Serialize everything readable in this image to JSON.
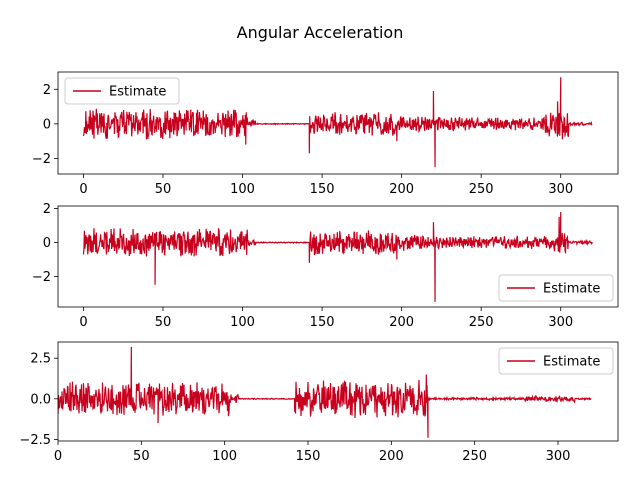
{
  "figure_title": "Angular Acceleration",
  "series_color": "#c8001e",
  "chart_data": [
    {
      "type": "line",
      "title": "",
      "xlabel": "",
      "ylabel": "",
      "xlim": [
        -16,
        336
      ],
      "ylim": [
        -2.9,
        3.0
      ],
      "xticks": [
        0,
        50,
        100,
        150,
        200,
        250,
        300
      ],
      "xtick_labels": [
        "0",
        "50",
        "100",
        "150",
        "200",
        "250",
        "300"
      ],
      "yticks": [
        2,
        0,
        -2
      ],
      "ytick_labels": [
        "2",
        "0",
        "−2"
      ],
      "legend": {
        "label": "Estimate",
        "loc": "upper left"
      },
      "segments": [
        {
          "x": [
            0,
            103
          ],
          "amp": 0.9
        },
        {
          "x": [
            103,
            108
          ],
          "amp": 0.25
        },
        {
          "x": [
            108,
            142
          ],
          "amp": 0.03
        },
        {
          "x": [
            142,
            196
          ],
          "amp": 0.7
        },
        {
          "x": [
            196,
            215
          ],
          "amp": 0.45
        },
        {
          "x": [
            215,
            290
          ],
          "amp": 0.4
        },
        {
          "x": [
            290,
            305
          ],
          "amp": 0.8
        },
        {
          "x": [
            305,
            320
          ],
          "amp": 0.1
        }
      ],
      "spikes": [
        {
          "x": 102,
          "y": -1.2
        },
        {
          "x": 142,
          "y": -1.7
        },
        {
          "x": 197,
          "y": -1.0
        },
        {
          "x": 220,
          "y": 1.9
        },
        {
          "x": 221,
          "y": -2.5
        },
        {
          "x": 298,
          "y": 1.3
        },
        {
          "x": 300,
          "y": 2.7
        },
        {
          "x": 301,
          "y": -0.9
        }
      ]
    },
    {
      "type": "line",
      "title": "",
      "xlabel": "",
      "ylabel": "",
      "xlim": [
        -16,
        336
      ],
      "ylim": [
        -3.8,
        2.15
      ],
      "xticks": [
        0,
        50,
        100,
        150,
        200,
        250,
        300
      ],
      "xtick_labels": [
        "0",
        "50",
        "100",
        "150",
        "200",
        "250",
        "300"
      ],
      "yticks": [
        2,
        0,
        -2
      ],
      "ytick_labels": [
        "2",
        "0",
        "−2"
      ],
      "legend": {
        "label": "Estimate",
        "loc": "lower right"
      },
      "segments": [
        {
          "x": [
            0,
            103
          ],
          "amp": 0.85
        },
        {
          "x": [
            103,
            108
          ],
          "amp": 0.2
        },
        {
          "x": [
            108,
            142
          ],
          "amp": 0.03
        },
        {
          "x": [
            142,
            196
          ],
          "amp": 0.75
        },
        {
          "x": [
            196,
            215
          ],
          "amp": 0.5
        },
        {
          "x": [
            215,
            295
          ],
          "amp": 0.4
        },
        {
          "x": [
            295,
            305
          ],
          "amp": 0.7
        },
        {
          "x": [
            305,
            320
          ],
          "amp": 0.1
        }
      ],
      "spikes": [
        {
          "x": 45,
          "y": -2.5
        },
        {
          "x": 142,
          "y": -1.2
        },
        {
          "x": 197,
          "y": -1.0
        },
        {
          "x": 220,
          "y": 1.2
        },
        {
          "x": 221,
          "y": -3.5
        },
        {
          "x": 299,
          "y": 1.5
        },
        {
          "x": 300,
          "y": 1.8
        }
      ]
    },
    {
      "type": "line",
      "title": "",
      "xlabel": "",
      "ylabel": "",
      "xlim": [
        0,
        336
      ],
      "ylim": [
        -2.6,
        3.5
      ],
      "xticks": [
        0,
        50,
        100,
        150,
        200,
        250,
        300
      ],
      "xtick_labels": [
        "0",
        "50",
        "100",
        "150",
        "200",
        "250",
        "300"
      ],
      "yticks": [
        2.5,
        0.0,
        -2.5
      ],
      "ytick_labels": [
        "2.5",
        "0.0",
        "−2.5"
      ],
      "legend": {
        "label": "Estimate",
        "loc": "upper right"
      },
      "segments": [
        {
          "x": [
            0,
            103
          ],
          "amp": 1.1
        },
        {
          "x": [
            103,
            108
          ],
          "amp": 0.3
        },
        {
          "x": [
            108,
            142
          ],
          "amp": 0.03
        },
        {
          "x": [
            142,
            222
          ],
          "amp": 1.2
        },
        {
          "x": [
            222,
            280
          ],
          "amp": 0.08
        },
        {
          "x": [
            280,
            310
          ],
          "amp": 0.2
        },
        {
          "x": [
            310,
            320
          ],
          "amp": 0.05
        }
      ],
      "spikes": [
        {
          "x": 44,
          "y": 3.2
        },
        {
          "x": 60,
          "y": -1.5
        },
        {
          "x": 142,
          "y": -0.8
        },
        {
          "x": 221,
          "y": 1.5
        },
        {
          "x": 222,
          "y": -2.4
        }
      ]
    }
  ]
}
